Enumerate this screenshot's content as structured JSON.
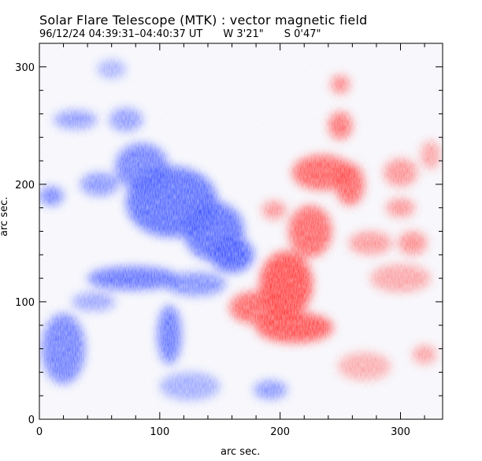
{
  "title": "Solar Flare Telescope (MTK) : vector magnetic field",
  "subtitle": {
    "time": "96/12/24  04:39:31–04:40:37 UT",
    "lon": "W 3'21\"",
    "lat": "S 0'47\""
  },
  "chart_data": {
    "type": "heatmap",
    "title": "Solar Flare Telescope (MTK) : vector magnetic field",
    "xlabel": "arc sec.",
    "ylabel": "arc sec.",
    "xlim": [
      0,
      335
    ],
    "ylim": [
      0,
      320
    ],
    "xticks": [
      0,
      100,
      200,
      300
    ],
    "yticks": [
      0,
      100,
      200,
      300
    ],
    "grid": false,
    "colors": {
      "negative": "#3f55ff",
      "positive": "#ff3b3b"
    },
    "regions": [
      {
        "polarity": "negative",
        "x": 10,
        "y": 190,
        "rx": 10,
        "ry": 8,
        "strength": 0.75
      },
      {
        "polarity": "negative",
        "x": 30,
        "y": 255,
        "rx": 18,
        "ry": 8,
        "strength": 0.5
      },
      {
        "polarity": "negative",
        "x": 50,
        "y": 200,
        "rx": 16,
        "ry": 10,
        "strength": 0.55
      },
      {
        "polarity": "negative",
        "x": 72,
        "y": 255,
        "rx": 14,
        "ry": 10,
        "strength": 0.5
      },
      {
        "polarity": "negative",
        "x": 85,
        "y": 215,
        "rx": 22,
        "ry": 20,
        "strength": 0.75
      },
      {
        "polarity": "negative",
        "x": 110,
        "y": 185,
        "rx": 38,
        "ry": 30,
        "strength": 0.9
      },
      {
        "polarity": "negative",
        "x": 145,
        "y": 160,
        "rx": 25,
        "ry": 25,
        "strength": 0.9
      },
      {
        "polarity": "negative",
        "x": 160,
        "y": 140,
        "rx": 18,
        "ry": 15,
        "strength": 1.0
      },
      {
        "polarity": "negative",
        "x": 78,
        "y": 120,
        "rx": 38,
        "ry": 10,
        "strength": 0.85
      },
      {
        "polarity": "negative",
        "x": 130,
        "y": 115,
        "rx": 25,
        "ry": 10,
        "strength": 0.6
      },
      {
        "polarity": "negative",
        "x": 108,
        "y": 72,
        "rx": 10,
        "ry": 25,
        "strength": 0.8
      },
      {
        "polarity": "negative",
        "x": 20,
        "y": 60,
        "rx": 18,
        "ry": 30,
        "strength": 0.75
      },
      {
        "polarity": "negative",
        "x": 45,
        "y": 100,
        "rx": 18,
        "ry": 8,
        "strength": 0.4
      },
      {
        "polarity": "negative",
        "x": 192,
        "y": 25,
        "rx": 14,
        "ry": 8,
        "strength": 0.55
      },
      {
        "polarity": "negative",
        "x": 125,
        "y": 28,
        "rx": 25,
        "ry": 12,
        "strength": 0.35
      },
      {
        "polarity": "negative",
        "x": 60,
        "y": 298,
        "rx": 12,
        "ry": 8,
        "strength": 0.3
      },
      {
        "polarity": "positive",
        "x": 205,
        "y": 115,
        "rx": 22,
        "ry": 28,
        "strength": 1.0
      },
      {
        "polarity": "positive",
        "x": 180,
        "y": 95,
        "rx": 22,
        "ry": 14,
        "strength": 0.8
      },
      {
        "polarity": "positive",
        "x": 212,
        "y": 78,
        "rx": 32,
        "ry": 13,
        "strength": 0.95
      },
      {
        "polarity": "positive",
        "x": 225,
        "y": 160,
        "rx": 18,
        "ry": 22,
        "strength": 0.8
      },
      {
        "polarity": "positive",
        "x": 235,
        "y": 210,
        "rx": 25,
        "ry": 15,
        "strength": 0.85
      },
      {
        "polarity": "positive",
        "x": 258,
        "y": 200,
        "rx": 12,
        "ry": 18,
        "strength": 0.8
      },
      {
        "polarity": "positive",
        "x": 250,
        "y": 250,
        "rx": 10,
        "ry": 12,
        "strength": 0.7
      },
      {
        "polarity": "positive",
        "x": 250,
        "y": 285,
        "rx": 8,
        "ry": 8,
        "strength": 0.55
      },
      {
        "polarity": "positive",
        "x": 195,
        "y": 178,
        "rx": 10,
        "ry": 8,
        "strength": 0.45
      },
      {
        "polarity": "positive",
        "x": 275,
        "y": 150,
        "rx": 18,
        "ry": 10,
        "strength": 0.4
      },
      {
        "polarity": "positive",
        "x": 300,
        "y": 180,
        "rx": 12,
        "ry": 8,
        "strength": 0.45
      },
      {
        "polarity": "positive",
        "x": 310,
        "y": 150,
        "rx": 12,
        "ry": 10,
        "strength": 0.5
      },
      {
        "polarity": "positive",
        "x": 300,
        "y": 210,
        "rx": 14,
        "ry": 12,
        "strength": 0.45
      },
      {
        "polarity": "positive",
        "x": 325,
        "y": 225,
        "rx": 8,
        "ry": 12,
        "strength": 0.35
      },
      {
        "polarity": "positive",
        "x": 300,
        "y": 120,
        "rx": 25,
        "ry": 12,
        "strength": 0.3
      },
      {
        "polarity": "positive",
        "x": 270,
        "y": 45,
        "rx": 22,
        "ry": 12,
        "strength": 0.25
      },
      {
        "polarity": "positive",
        "x": 320,
        "y": 55,
        "rx": 10,
        "ry": 8,
        "strength": 0.35
      }
    ]
  }
}
